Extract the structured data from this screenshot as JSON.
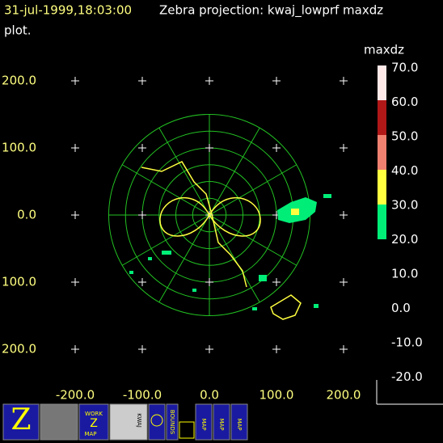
{
  "header": {
    "time": "31-jul-1999,18:03:00",
    "title": "Zebra projection: kwaj_lowprf maxdz",
    "title_cont": "plot."
  },
  "x_axis": {
    "labels": [
      "-200.0",
      "-100.0",
      "0.0",
      "100.0",
      "200.0"
    ]
  },
  "y_axis": {
    "labels": [
      "200.0",
      "100.0",
      "0.0",
      "100.0",
      "200.0"
    ]
  },
  "colorbar": {
    "title": "maxdz",
    "labels": [
      "70.0",
      "60.0",
      "50.0",
      "40.0",
      "30.0",
      "20.0",
      "10.0",
      "0.0",
      "-10.0",
      "-20.0"
    ]
  },
  "toolbar": {
    "work_map": [
      "WORK",
      "Z",
      "MAP"
    ],
    "kwaj": "KWAJ",
    "bounds": "BOUNDS",
    "map1": "MAP",
    "map2": "MAP",
    "map3": "MAP"
  }
}
